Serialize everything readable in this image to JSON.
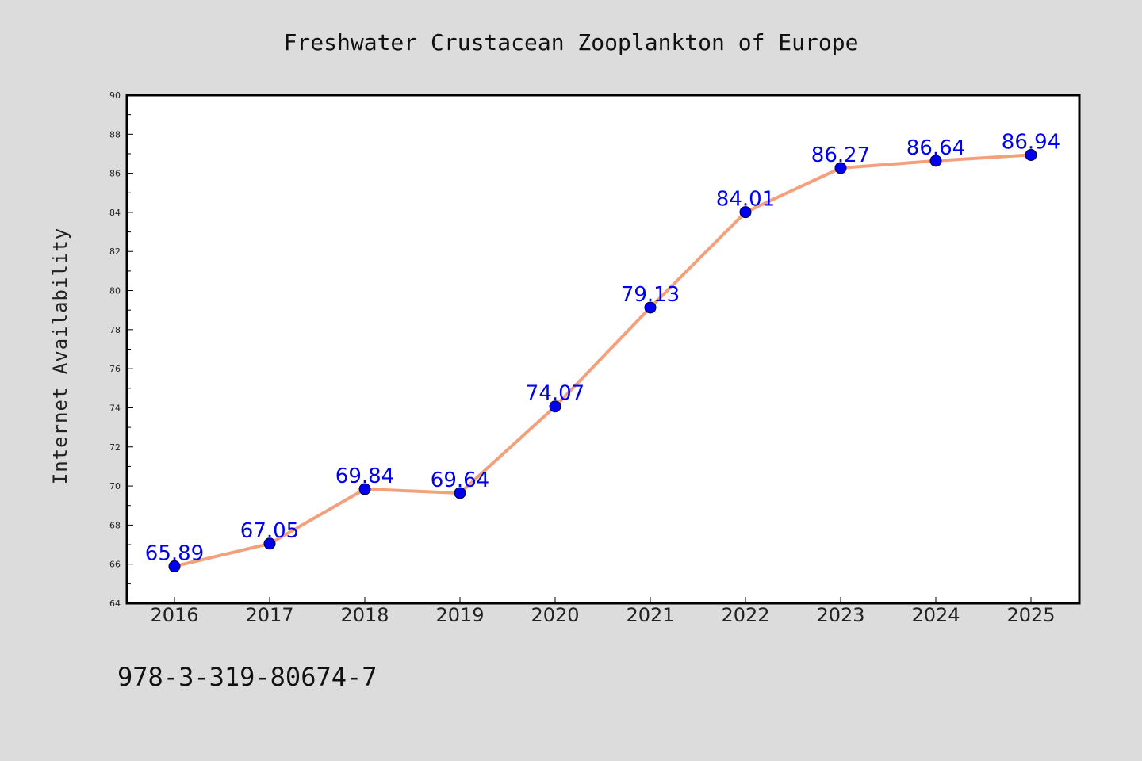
{
  "footer": {
    "code": "978-3-319-80674-7"
  },
  "colors": {
    "background": "#dcdcdc",
    "plot_background": "#ffffff",
    "line": "#f4a07c",
    "marker": "#0000ee",
    "data_label": "#0000ee"
  },
  "chart_data": {
    "type": "line",
    "title": "Freshwater Crustacean Zooplankton of Europe",
    "xlabel": "",
    "ylabel": "Internet Availability",
    "categories": [
      "2016",
      "2017",
      "2018",
      "2019",
      "2020",
      "2021",
      "2022",
      "2023",
      "2024",
      "2025"
    ],
    "series": [
      {
        "values": [
          65.89,
          67.05,
          69.84,
          69.64,
          74.07,
          79.13,
          84.01,
          86.27,
          86.64,
          86.94
        ],
        "data_labels": [
          "65.89",
          "67.05",
          "69.84",
          "69.64",
          "74.07",
          "79.13",
          "84.01",
          "86.27",
          "86.64",
          "86.94"
        ]
      }
    ],
    "ylim": [
      64,
      90
    ],
    "yticks": [
      64,
      66,
      68,
      70,
      72,
      74,
      76,
      78,
      80,
      82,
      84,
      86,
      88,
      90
    ],
    "grid": false,
    "legend": "none"
  }
}
